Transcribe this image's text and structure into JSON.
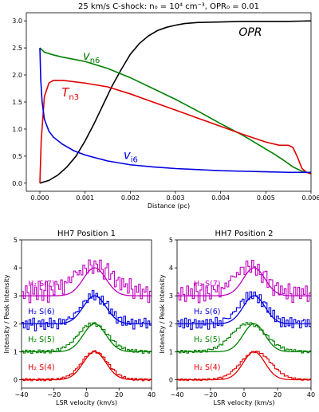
{
  "chart_data": [
    {
      "type": "line",
      "title": "25 km/s C-shock: n₀ = 10⁴ cm⁻³, OPR₀ = 0.01",
      "xlabel": "Distance (pc)",
      "ylabel": "",
      "xlim": [
        -0.0003,
        0.006
      ],
      "ylim": [
        -0.15,
        3.15
      ],
      "xticks": [
        "0.000",
        "0.001",
        "0.002",
        "0.003",
        "0.004",
        "0.005",
        "0.006"
      ],
      "yticks": [
        "0.0",
        "0.5",
        "1.0",
        "1.5",
        "2.0",
        "2.5",
        "3.0"
      ],
      "grid": false,
      "series": [
        {
          "name": "OPR",
          "color": "#000000",
          "x": [
            0.0,
            0.0002,
            0.0004,
            0.0006,
            0.0008,
            0.001,
            0.0012,
            0.0014,
            0.0016,
            0.0018,
            0.002,
            0.0022,
            0.0024,
            0.0026,
            0.0028,
            0.003,
            0.0032,
            0.0035,
            0.004,
            0.0045,
            0.005,
            0.0055,
            0.006
          ],
          "y": [
            0.0,
            0.05,
            0.15,
            0.3,
            0.5,
            0.78,
            1.1,
            1.45,
            1.8,
            2.1,
            2.38,
            2.58,
            2.72,
            2.82,
            2.88,
            2.92,
            2.95,
            2.97,
            2.98,
            2.99,
            2.99,
            2.99,
            3.0
          ]
        },
        {
          "name": "v_n6",
          "color": "#008000",
          "x": [
            0.0,
            0.0001,
            0.0003,
            0.0005,
            0.001,
            0.0015,
            0.002,
            0.0025,
            0.003,
            0.0035,
            0.004,
            0.0045,
            0.005,
            0.0052,
            0.0054,
            0.0056,
            0.0058,
            0.006
          ],
          "y": [
            2.5,
            2.42,
            2.37,
            2.33,
            2.25,
            2.12,
            1.95,
            1.75,
            1.55,
            1.33,
            1.1,
            0.88,
            0.63,
            0.53,
            0.42,
            0.3,
            0.22,
            0.18
          ]
        },
        {
          "name": "T_n3",
          "color": "#e00000",
          "x": [
            0.0,
            3e-05,
            0.0001,
            0.0002,
            0.0003,
            0.0005,
            0.001,
            0.0015,
            0.002,
            0.0025,
            0.003,
            0.0035,
            0.004,
            0.0045,
            0.005,
            0.0053,
            0.0055,
            0.0056,
            0.0057,
            0.0058,
            0.0059,
            0.006
          ],
          "y": [
            0.0,
            0.8,
            1.6,
            1.85,
            1.9,
            1.9,
            1.85,
            1.78,
            1.65,
            1.5,
            1.35,
            1.2,
            1.05,
            0.9,
            0.76,
            0.7,
            0.7,
            0.66,
            0.48,
            0.27,
            0.2,
            0.17
          ]
        },
        {
          "name": "v_i6",
          "color": "#0000e0",
          "x": [
            0.0,
            2e-05,
            5e-05,
            0.0001,
            0.0002,
            0.0003,
            0.0005,
            0.00075,
            0.001,
            0.0015,
            0.002,
            0.0025,
            0.003,
            0.0035,
            0.004,
            0.0045,
            0.005,
            0.0055,
            0.006
          ],
          "y": [
            2.5,
            1.9,
            1.5,
            1.18,
            0.96,
            0.85,
            0.72,
            0.6,
            0.52,
            0.41,
            0.34,
            0.3,
            0.27,
            0.25,
            0.23,
            0.22,
            0.21,
            0.2,
            0.2
          ]
        }
      ],
      "annotations": [
        {
          "text": "OPR",
          "x": 0.0044,
          "y": 2.72,
          "color": "#000000"
        },
        {
          "text": "v",
          "sub": "n6",
          "x": 0.00095,
          "y": 2.28,
          "color": "#008000"
        },
        {
          "text": "T",
          "sub": "n3",
          "x": 0.00048,
          "y": 1.6,
          "color": "#e00000"
        },
        {
          "text": "v",
          "sub": "i6",
          "x": 0.00185,
          "y": 0.45,
          "color": "#0000e0"
        }
      ]
    },
    {
      "type": "line",
      "title": "HH7 Position 1",
      "xlabel": "LSR velocity (km/s)",
      "ylabel": "Intensity / Peak Intensity",
      "xlim": [
        -40,
        40
      ],
      "ylim": [
        -0.3,
        5
      ],
      "xticks": [
        "−40",
        "−20",
        "0",
        "20",
        "40"
      ],
      "yticks": [
        "0",
        "1",
        "2",
        "3",
        "4",
        "5"
      ],
      "model_center": 5,
      "model_width": 7,
      "labels": [
        {
          "text": "H₂ S(7)",
          "x": -36,
          "y": 3.35,
          "color": "#c000c0"
        },
        {
          "text": "H₂ S(6)",
          "x": -36,
          "y": 2.35,
          "color": "#0000e0"
        },
        {
          "text": "H₂ S(5)",
          "x": -36,
          "y": 1.35,
          "color": "#008000"
        },
        {
          "text": "H₂ S(4)",
          "x": -36,
          "y": 0.35,
          "color": "#e00000"
        }
      ],
      "series": [
        {
          "name": "H₂ S(7)",
          "color": "#c000c0",
          "offset": 3,
          "peak": 1.0,
          "center": 4,
          "width": 12,
          "noise": [
            0.15,
            -0.1,
            0.35,
            0.1,
            -0.25,
            0.4,
            0.05,
            0.3,
            -0.15,
            0.5,
            0.2,
            -0.2,
            0.15,
            0.45,
            -0.3,
            0.25,
            0.1,
            -0.1,
            0.35,
            0.2,
            0.0,
            0.3,
            -0.25,
            0.15,
            0.05,
            0.2,
            -0.05,
            0.1,
            0.25,
            0.15,
            0.0,
            0.1,
            -0.1,
            0.2,
            0.05,
            -0.15,
            0.3,
            0.1,
            -0.2,
            0.25,
            0.15,
            -0.1,
            0.35,
            0.05,
            -0.25,
            0.2,
            0.4,
            -0.1,
            0.15,
            0.3,
            -0.2,
            0.1,
            0.25,
            -0.15,
            0.3,
            0.05,
            0.2,
            -0.1,
            0.45,
            0.1,
            -0.2,
            0.25,
            0.05,
            0.35,
            -0.15,
            0.2,
            0.1,
            0.3,
            -0.25,
            0.15
          ]
        },
        {
          "name": "H₂ S(6)",
          "color": "#0000e0",
          "offset": 2,
          "peak": 1.0,
          "center": 5,
          "width": 8,
          "noise": [
            0.05,
            -0.15,
            0.1,
            -0.2,
            0.15,
            -0.05,
            0.2,
            -0.25,
            0.0,
            0.1,
            -0.1,
            0.15,
            -0.2,
            0.05,
            -0.1,
            0.2,
            -0.15,
            0.1,
            0.0,
            -0.2,
            0.15,
            -0.05,
            0.1,
            -0.1,
            0.05,
            0.1,
            0.0,
            -0.05,
            0.08,
            0.05,
            0.0,
            0.06,
            -0.04,
            0.1,
            0.05,
            -0.1,
            0.15,
            -0.05,
            0.2,
            -0.15,
            0.1,
            0.0,
            -0.2,
            0.15,
            -0.1,
            0.05,
            0.2,
            -0.15,
            0.1,
            -0.05,
            0.15,
            -0.2,
            0.05,
            0.1,
            -0.15,
            0.2,
            -0.1,
            0.05,
            -0.05,
            0.15,
            -0.2,
            0.1,
            0.0,
            0.15,
            -0.1,
            0.05,
            0.2,
            -0.15,
            0.1,
            -0.05
          ]
        },
        {
          "name": "H₂ S(5)",
          "color": "#008000",
          "offset": 1,
          "peak": 1.0,
          "center": 4,
          "width": 9,
          "noise": [
            0.03,
            -0.05,
            0.06,
            -0.02,
            0.05,
            -0.06,
            0.04,
            0.0,
            -0.04,
            0.06,
            -0.03,
            0.05,
            -0.05,
            0.02,
            0.04,
            -0.06,
            0.05,
            0.0,
            -0.03,
            0.06,
            -0.04,
            0.03,
            0.05,
            -0.02,
            0.04,
            0.0,
            0.02,
            -0.03,
            0.04,
            0.02,
            0.0,
            0.03,
            -0.02,
            0.04,
            0.05,
            -0.03,
            0.06,
            -0.04,
            0.03,
            0.05,
            -0.06,
            0.02,
            0.04,
            -0.03,
            0.05,
            -0.05,
            0.03,
            0.06,
            -0.04,
            0.02,
            0.05,
            -0.06,
            0.03,
            0.04,
            -0.02,
            0.06,
            -0.05,
            0.03,
            0.0,
            0.05,
            -0.04,
            0.06,
            -0.03,
            0.02,
            0.05,
            -0.06,
            0.04,
            0.03,
            -0.05,
            0.02
          ]
        },
        {
          "name": "H₂ S(4)",
          "color": "#e00000",
          "offset": 0,
          "peak": 1.0,
          "center": 5,
          "width": 8,
          "noise": [
            0.02,
            -0.03,
            0.04,
            -0.02,
            0.03,
            -0.04,
            0.02,
            0.0,
            -0.03,
            0.04,
            -0.02,
            0.03,
            -0.04,
            0.02,
            0.03,
            -0.03,
            0.04,
            0.0,
            -0.02,
            0.03,
            -0.03,
            0.02,
            0.04,
            -0.02,
            0.03,
            0.0,
            0.02,
            -0.02,
            0.03,
            0.02,
            0.0,
            0.02,
            -0.02,
            0.03,
            0.04,
            -0.02,
            0.03,
            -0.03,
            0.02,
            0.04,
            -0.04,
            0.02,
            0.03,
            -0.02,
            0.04,
            -0.03,
            0.02,
            0.03,
            -0.03,
            0.02,
            0.04,
            -0.04,
            0.02,
            0.03,
            -0.02,
            0.04,
            -0.03,
            0.02,
            0.0,
            0.03,
            -0.03,
            0.04,
            -0.02,
            0.02,
            0.03,
            -0.04,
            0.03,
            0.02,
            -0.03,
            0.02
          ]
        }
      ]
    },
    {
      "type": "line",
      "title": "HH7 Position 2",
      "xlabel": "LSR velocity (km/s)",
      "ylabel": "Intensity / Peak Intensity",
      "xlim": [
        -40,
        40
      ],
      "ylim": [
        -0.3,
        5
      ],
      "xticks": [
        "−40",
        "−20",
        "0",
        "20",
        "40"
      ],
      "yticks": [
        "0",
        "1",
        "2",
        "3",
        "4",
        "5"
      ],
      "model_center": 6,
      "model_width": 6.5,
      "labels": [
        {
          "text": "H₂ S(7)",
          "x": -30,
          "y": 3.35,
          "color": "#c000c0"
        },
        {
          "text": "H₂ S(6)",
          "x": -30,
          "y": 2.35,
          "color": "#0000e0"
        },
        {
          "text": "H₂ S(5)",
          "x": -30,
          "y": 1.35,
          "color": "#008000"
        },
        {
          "text": "H₂ S(4)",
          "x": -30,
          "y": 0.35,
          "color": "#e00000"
        }
      ],
      "series": [
        {
          "name": "H₂ S(7)",
          "color": "#c000c0",
          "offset": 3,
          "peak": 1.0,
          "center": 3,
          "width": 9,
          "noise": [
            0.1,
            -0.15,
            0.3,
            0.05,
            -0.2,
            0.35,
            0.0,
            0.25,
            -0.1,
            0.45,
            0.15,
            -0.25,
            0.2,
            0.4,
            -0.2,
            0.3,
            0.05,
            -0.15,
            0.3,
            0.15,
            0.05,
            0.25,
            -0.2,
            0.1,
            0.0,
            0.15,
            -0.05,
            0.1,
            0.2,
            0.1,
            0.0,
            0.1,
            -0.05,
            0.15,
            0.1,
            -0.2,
            0.25,
            0.05,
            -0.15,
            0.3,
            0.1,
            -0.15,
            0.3,
            0.0,
            -0.2,
            0.25,
            0.35,
            -0.15,
            0.2,
            0.25,
            -0.25,
            0.15,
            0.3,
            -0.1,
            0.25,
            0.0,
            0.2,
            -0.15,
            0.4,
            0.05,
            -0.25,
            0.3,
            0.0,
            0.3,
            -0.1,
            0.25,
            0.05,
            0.35,
            -0.2,
            0.1
          ]
        },
        {
          "name": "H₂ S(6)",
          "color": "#0000e0",
          "offset": 2,
          "peak": 1.0,
          "center": 5,
          "width": 8,
          "noise": [
            0.1,
            -0.1,
            0.15,
            -0.15,
            0.2,
            -0.1,
            0.15,
            -0.2,
            0.05,
            0.15,
            -0.15,
            0.1,
            -0.15,
            0.1,
            -0.05,
            0.15,
            -0.2,
            0.15,
            0.05,
            -0.15,
            0.2,
            -0.1,
            0.05,
            -0.15,
            0.1,
            0.05,
            0.0,
            -0.05,
            0.05,
            0.05,
            0.0,
            0.05,
            -0.05,
            0.1,
            0.1,
            -0.15,
            0.2,
            -0.1,
            0.15,
            -0.1,
            0.15,
            0.05,
            -0.15,
            0.2,
            -0.15,
            0.1,
            0.15,
            -0.1,
            0.15,
            -0.1,
            0.2,
            -0.15,
            0.1,
            0.05,
            -0.2,
            0.15,
            -0.15,
            0.1,
            -0.1,
            0.2,
            -0.15,
            0.15,
            0.05,
            0.1,
            -0.15,
            0.1,
            0.15,
            -0.1,
            0.15,
            -0.1
          ]
        },
        {
          "name": "H₂ S(5)",
          "color": "#008000",
          "offset": 1,
          "peak": 1.0,
          "center": 3,
          "width": 10,
          "noise": [
            0.02,
            -0.04,
            0.05,
            -0.03,
            0.04,
            -0.05,
            0.03,
            0.01,
            -0.03,
            0.05,
            -0.02,
            0.04,
            -0.04,
            0.03,
            0.03,
            -0.05,
            0.04,
            0.01,
            -0.02,
            0.05,
            -0.03,
            0.02,
            0.04,
            -0.03,
            0.05,
            0.02,
            0.04,
            0.0,
            0.06,
            0.04,
            0.02,
            0.05,
            0.0,
            0.05,
            0.06,
            -0.02,
            0.05,
            -0.03,
            0.04,
            0.04,
            -0.05,
            0.03,
            0.03,
            -0.02,
            0.04,
            -0.04,
            0.02,
            0.05,
            -0.03,
            0.03,
            0.04,
            -0.05,
            0.02,
            0.03,
            -0.03,
            0.05,
            -0.04,
            0.02,
            0.01,
            0.04,
            -0.03,
            0.05,
            -0.02,
            0.03,
            0.04,
            -0.05,
            0.03,
            0.02,
            -0.04,
            0.03
          ]
        },
        {
          "name": "H₂ S(4)",
          "color": "#e00000",
          "offset": 0,
          "peak": 1.0,
          "center": 7,
          "width": 9,
          "noise": [
            0.02,
            -0.02,
            0.03,
            -0.02,
            0.02,
            -0.03,
            0.02,
            0.0,
            -0.02,
            0.03,
            -0.02,
            0.02,
            -0.03,
            0.02,
            0.02,
            -0.02,
            0.03,
            0.0,
            -0.02,
            0.02,
            -0.02,
            0.02,
            0.03,
            -0.02,
            0.02,
            0.0,
            0.02,
            -0.02,
            0.02,
            0.02,
            0.0,
            0.02,
            -0.02,
            0.02,
            0.03,
            -0.02,
            0.02,
            -0.02,
            0.02,
            0.03,
            -0.03,
            0.02,
            0.02,
            -0.02,
            0.03,
            -0.02,
            0.02,
            0.02,
            -0.02,
            0.02,
            0.03,
            -0.03,
            0.02,
            0.02,
            -0.02,
            0.03,
            -0.02,
            0.02,
            0.0,
            0.02,
            -0.02,
            0.03,
            -0.02,
            0.02,
            0.02,
            -0.03,
            0.02,
            0.02,
            -0.02,
            0.02
          ]
        }
      ]
    }
  ]
}
